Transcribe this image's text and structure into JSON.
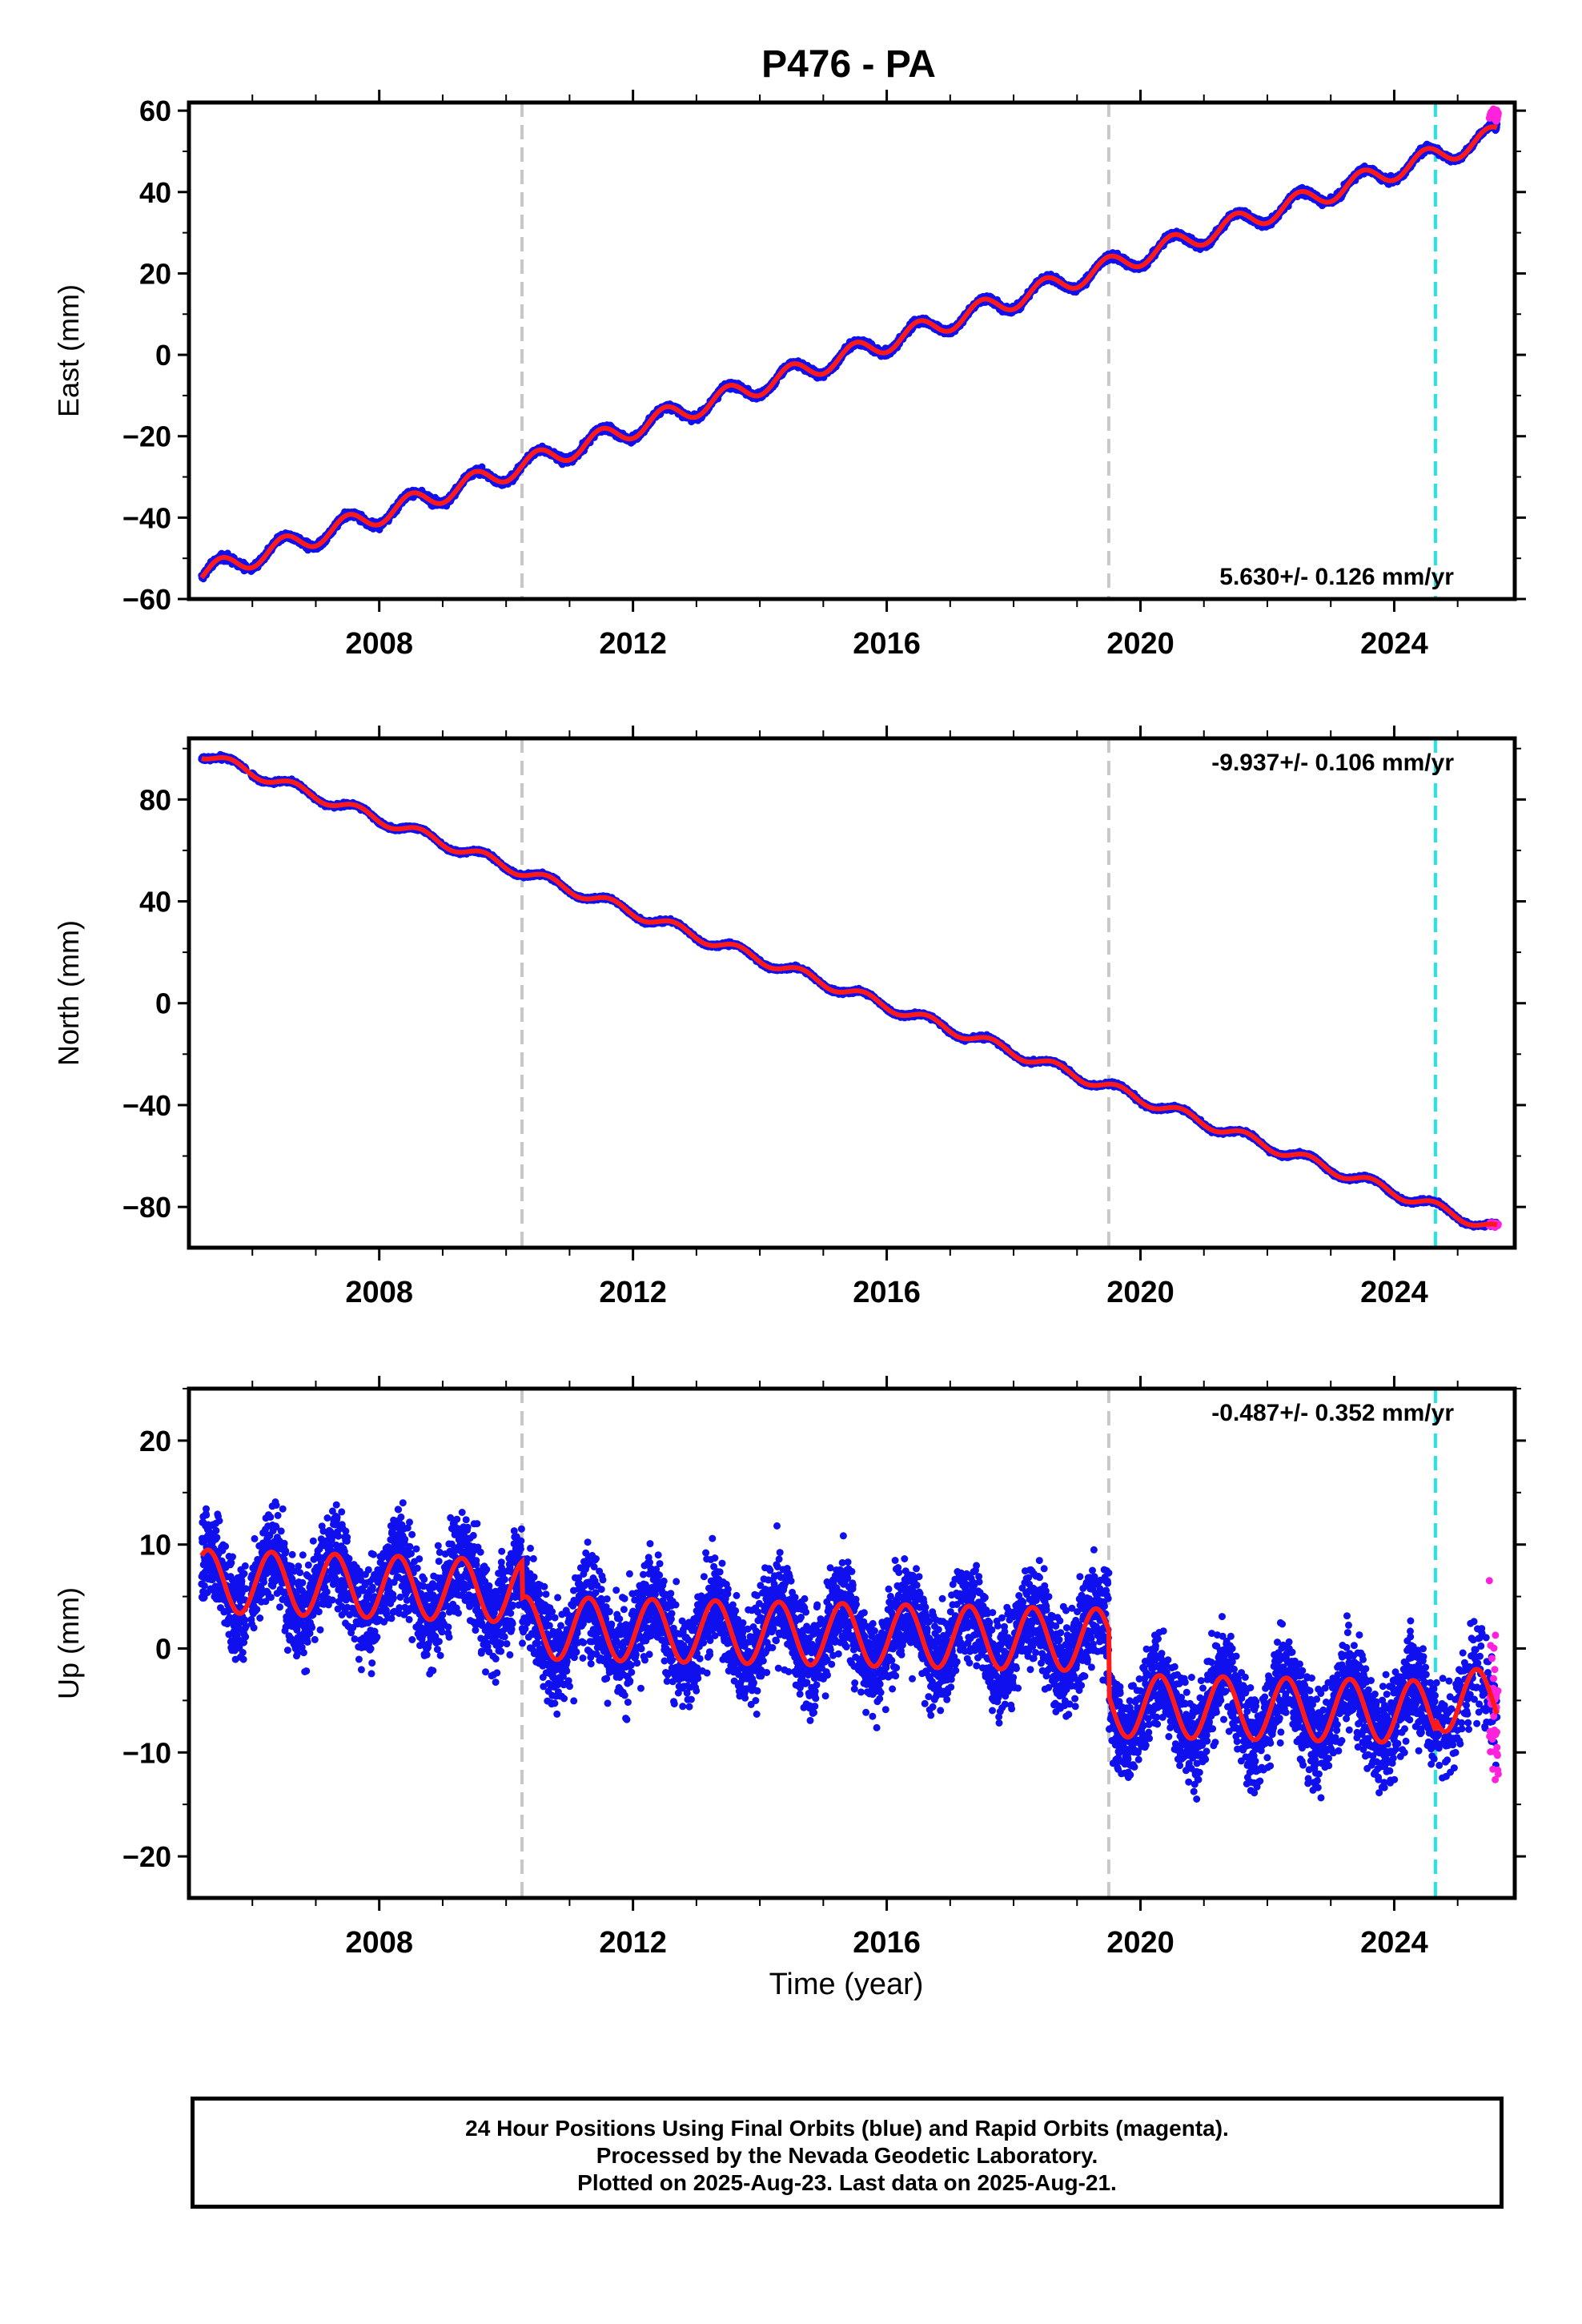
{
  "chart_data": [
    {
      "type": "scatter",
      "title": "P476 - PA",
      "ylabel": "East (mm)",
      "xlabel": "",
      "xlim": [
        2005.0,
        2025.9
      ],
      "ylim": [
        -60,
        62
      ],
      "yticks": [
        -60,
        -40,
        -20,
        0,
        20,
        40,
        60
      ],
      "xticks": [
        2008,
        2012,
        2016,
        2020,
        2024
      ],
      "rate_label": "5.630+/- 0.126 mm/yr",
      "rate_position": "bottom-right",
      "trend": {
        "start_year": 2005.2,
        "end_year": 2025.62,
        "start_value": -54,
        "end_value": 54,
        "seasonal_amplitude": 2.5
      },
      "series": [
        {
          "values_summary": "24 Hour Positions Using Final Orbits",
          "color": "#1010ee"
        },
        {
          "values_summary": "Rapid Orbits",
          "color": "#ff22dd"
        },
        {
          "values_summary": "model",
          "color": "#ff1a1a"
        }
      ],
      "breaks": [
        2010.25,
        2019.5
      ],
      "last_final": 2024.65
    },
    {
      "type": "scatter",
      "title": "",
      "ylabel": "North (mm)",
      "xlabel": "",
      "xlim": [
        2005.0,
        2025.9
      ],
      "ylim": [
        -96,
        104
      ],
      "yticks": [
        -80,
        -40,
        0,
        40,
        80
      ],
      "xticks": [
        2008,
        2012,
        2016,
        2020,
        2024
      ],
      "rate_label": "-9.937+/- 0.106 mm/yr",
      "rate_position": "top-right",
      "trend": {
        "start_year": 2005.2,
        "end_year": 2025.62,
        "start_value": 98,
        "end_value": -89,
        "seasonal_amplitude": 2.0
      },
      "breaks": [
        2010.25,
        2019.5
      ],
      "last_final": 2024.65
    },
    {
      "type": "scatter",
      "title": "",
      "ylabel": "Up (mm)",
      "xlabel": "Time (year)",
      "xlim": [
        2005.0,
        2025.9
      ],
      "ylim": [
        -24,
        25
      ],
      "yticks": [
        -20,
        -10,
        0,
        10,
        20
      ],
      "xticks": [
        2008,
        2012,
        2016,
        2020,
        2024
      ],
      "rate_label": "-0.487+/- 0.352 mm/yr",
      "rate_position": "top-right",
      "trend": {
        "start_year": 2005.2,
        "end_year": 2025.62,
        "seasonal_amplitude": 3.0
      },
      "breaks": [
        2010.25,
        2019.5
      ],
      "last_final": 2024.65
    }
  ],
  "footer": {
    "line1": "24 Hour Positions Using Final Orbits (blue) and Rapid Orbits (magenta).",
    "line2": "Processed by the Nevada Geodetic Laboratory.",
    "line3": "Plotted on 2025-Aug-23. Last data on 2025-Aug-21."
  },
  "colors": {
    "final_orbit_points": "#1010ee",
    "rapid_orbit_points": "#ff22dd",
    "model_line": "#ff1a1a",
    "break_lines": "#c8c8c8",
    "last_final_line": "#22e5e5"
  }
}
